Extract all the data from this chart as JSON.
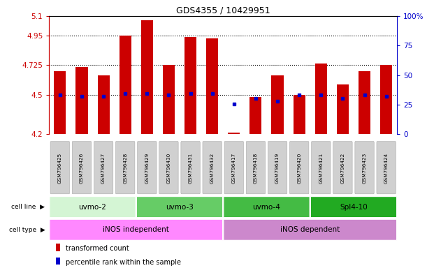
{
  "title": "GDS4355 / 10429951",
  "samples": [
    "GSM796425",
    "GSM796426",
    "GSM796427",
    "GSM796428",
    "GSM796429",
    "GSM796430",
    "GSM796431",
    "GSM796432",
    "GSM796417",
    "GSM796418",
    "GSM796419",
    "GSM796420",
    "GSM796421",
    "GSM796422",
    "GSM796423",
    "GSM796424"
  ],
  "bar_tops": [
    4.68,
    4.71,
    4.65,
    4.95,
    5.07,
    4.73,
    4.94,
    4.93,
    4.21,
    4.48,
    4.65,
    4.5,
    4.74,
    4.58,
    4.68,
    4.73
  ],
  "bar_bottom": 4.2,
  "percentile_vals": [
    4.5,
    4.49,
    4.49,
    4.51,
    4.51,
    4.5,
    4.51,
    4.51,
    4.43,
    4.47,
    4.45,
    4.5,
    4.5,
    4.47,
    4.5,
    4.49
  ],
  "ylim": [
    4.2,
    5.1
  ],
  "yticks_left": [
    4.2,
    4.5,
    4.725,
    4.95,
    5.1
  ],
  "yticks_right": [
    0,
    25,
    50,
    75,
    100
  ],
  "ytick_right_labels": [
    "0",
    "25",
    "50",
    "75",
    "100%"
  ],
  "grid_lines": [
    4.5,
    4.725,
    4.95
  ],
  "cell_lines": [
    {
      "label": "uvmo-2",
      "start": 0,
      "end": 4,
      "color": "#d4f5d4"
    },
    {
      "label": "uvmo-3",
      "start": 4,
      "end": 8,
      "color": "#66cc66"
    },
    {
      "label": "uvmo-4",
      "start": 8,
      "end": 12,
      "color": "#44bb44"
    },
    {
      "label": "Spl4-10",
      "start": 12,
      "end": 16,
      "color": "#22aa22"
    }
  ],
  "cell_types": [
    {
      "label": "iNOS independent",
      "start": 0,
      "end": 8,
      "color": "#ff88ff"
    },
    {
      "label": "iNOS dependent",
      "start": 8,
      "end": 16,
      "color": "#cc88cc"
    }
  ],
  "bar_color": "#cc0000",
  "percentile_color": "#0000cc",
  "left_tick_color": "#cc0000",
  "right_tick_color": "#0000cc",
  "legend_items": [
    {
      "label": "transformed count",
      "color": "#cc0000"
    },
    {
      "label": "percentile rank within the sample",
      "color": "#0000cc"
    }
  ],
  "sample_box_color": "#d0d0d0",
  "sample_box_edge": "#aaaaaa"
}
